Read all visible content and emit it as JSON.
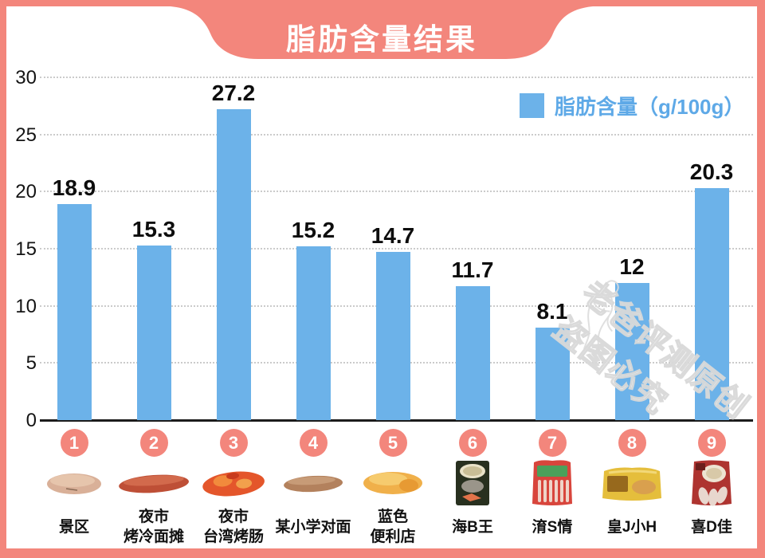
{
  "title": "脂肪含量结果",
  "legend": {
    "label": "脂肪含量（g/100g）",
    "swatch_color": "#6CB2E9",
    "text_color": "#5EA9E7"
  },
  "watermark": {
    "line1": "老爸评测原创",
    "line2": "盗图必究"
  },
  "colors": {
    "frame_salmon": "#F3867C",
    "bar_blue": "#6CB2E9",
    "grid_gray": "#cbcbcb",
    "axis_black": "#1c1c1c"
  },
  "chart_data": {
    "type": "bar",
    "title": "脂肪含量结果",
    "legend_entry": "脂肪含量（g/100g）",
    "legend_position": "top-right",
    "grid": "horizontal dotted",
    "ylim": [
      0,
      30
    ],
    "yticks": [
      0,
      5,
      10,
      15,
      20,
      25,
      30
    ],
    "xlabel": "",
    "ylabel": "",
    "indices": [
      "1",
      "2",
      "3",
      "4",
      "5",
      "6",
      "7",
      "8",
      "9"
    ],
    "categories": [
      [
        "景区"
      ],
      [
        "夜市",
        "烤冷面摊"
      ],
      [
        "夜市",
        "台湾烤肠"
      ],
      [
        "某小学对面"
      ],
      [
        "蓝色",
        "便利店"
      ],
      [
        "海B王"
      ],
      [
        "淯S情"
      ],
      [
        "皇J小H"
      ],
      [
        "喜D佳"
      ]
    ],
    "values": [
      18.9,
      15.3,
      27.2,
      15.2,
      14.7,
      11.7,
      8.1,
      12,
      20.3
    ]
  }
}
